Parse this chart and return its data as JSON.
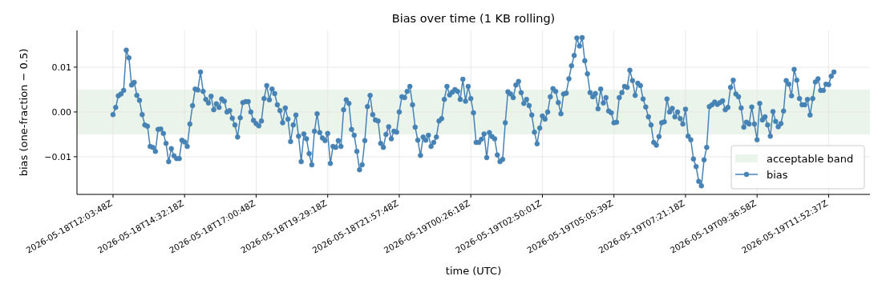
{
  "chart_data": {
    "type": "line",
    "title": "Bias over time (1 KB rolling)",
    "xlabel": "time (UTC)",
    "ylabel": "bias (one-fraction − 0.5)",
    "categories": [
      "2026-05-18T12:03:48Z",
      null,
      null,
      null,
      null,
      null,
      null,
      null,
      null,
      null,
      null,
      null,
      null,
      null,
      null,
      null,
      null,
      null,
      null,
      null,
      null,
      null,
      null,
      null,
      null,
      null,
      null,
      "2026-05-18T14:32:18Z",
      null,
      null,
      null,
      null,
      null,
      null,
      null,
      null,
      null,
      null,
      null,
      null,
      null,
      null,
      null,
      null,
      null,
      null,
      null,
      null,
      null,
      null,
      null,
      null,
      null,
      null,
      "2026-05-18T17:00:48Z",
      null,
      null,
      null,
      null,
      null,
      null,
      null,
      null,
      null,
      null,
      null,
      null,
      null,
      null,
      null,
      null,
      null,
      null,
      null,
      null,
      null,
      null,
      null,
      null,
      null,
      null,
      "2026-05-18T19:29:18Z",
      null,
      null,
      null,
      null,
      null,
      null,
      null,
      null,
      null,
      null,
      null,
      null,
      null,
      null,
      null,
      null,
      null,
      null,
      null,
      null,
      null,
      null,
      null,
      null,
      null,
      null,
      "2026-05-18T21:57:48Z",
      null,
      null,
      null,
      null,
      null,
      null,
      null,
      null,
      null,
      null,
      null,
      null,
      null,
      null,
      null,
      null,
      null,
      null,
      null,
      null,
      null,
      null,
      null,
      null,
      null,
      null,
      "2026-05-19T00:26:18Z",
      null,
      null,
      null,
      null,
      null,
      null,
      null,
      null,
      null,
      null,
      null,
      null,
      null,
      null,
      null,
      null,
      null,
      null,
      null,
      null,
      null,
      null,
      null,
      null,
      null,
      null,
      "2026-05-19T02:50:01Z",
      null,
      null,
      null,
      null,
      null,
      null,
      null,
      null,
      null,
      null,
      null,
      null,
      null,
      null,
      null,
      null,
      null,
      null,
      null,
      null,
      null,
      null,
      null,
      null,
      null,
      null,
      "2026-05-19T05:05:39Z",
      null,
      null,
      null,
      null,
      null,
      null,
      null,
      null,
      null,
      null,
      null,
      null,
      null,
      null,
      null,
      null,
      null,
      null,
      null,
      null,
      null,
      null,
      null,
      null,
      null,
      null,
      "2026-05-19T07:21:18Z",
      null,
      null,
      null,
      null,
      null,
      null,
      null,
      null,
      null,
      null,
      null,
      null,
      null,
      null,
      null,
      null,
      null,
      null,
      null,
      null,
      null,
      null,
      null,
      null,
      null,
      null,
      "2026-05-19T09:36:58Z",
      null,
      null,
      null,
      null,
      null,
      null,
      null,
      null,
      null,
      null,
      null,
      null,
      null,
      null,
      null,
      null,
      null,
      null,
      null,
      null,
      null,
      null,
      null,
      null,
      null,
      null,
      "2026-05-19T11:52:37Z",
      null,
      null
    ],
    "series": [
      {
        "name": "bias",
        "color": "#4682b4",
        "values": [
          -0.0006,
          0.001,
          0.0036,
          0.004,
          0.0048,
          0.0138,
          0.0121,
          0.006,
          0.0066,
          0.0037,
          0.0026,
          -0.0006,
          -0.0029,
          -0.0032,
          -0.0077,
          -0.0079,
          -0.0088,
          -0.0039,
          -0.0038,
          -0.0048,
          -0.007,
          -0.0111,
          -0.0082,
          -0.0098,
          -0.0104,
          -0.0104,
          -0.0063,
          -0.0067,
          -0.0077,
          -0.0027,
          0.0014,
          0.0051,
          0.0049,
          0.0089,
          0.0046,
          0.0028,
          0.002,
          0.0035,
          0.0005,
          0.0018,
          0.001,
          0.0029,
          0.0024,
          0.0,
          0.0003,
          -0.0014,
          -0.0029,
          -0.0056,
          -0.0013,
          0.0021,
          0.0023,
          0.0023,
          0.0,
          -0.0019,
          -0.0026,
          -0.0031,
          -0.002,
          0.003,
          0.0059,
          0.0027,
          0.0051,
          0.0041,
          0.0016,
          0.0003,
          -0.0024,
          0.0009,
          -0.0016,
          -0.0066,
          -0.0029,
          -0.0007,
          -0.0054,
          -0.0111,
          -0.0049,
          -0.006,
          -0.0093,
          -0.0118,
          -0.0043,
          -0.0004,
          -0.0046,
          -0.0058,
          -0.0064,
          -0.0048,
          -0.0115,
          -0.0077,
          -0.0079,
          -0.0064,
          -0.0077,
          0.0005,
          0.0027,
          0.0019,
          -0.0039,
          -0.0052,
          -0.0088,
          -0.0129,
          -0.0118,
          -0.0064,
          0.0012,
          0.0037,
          -0.0006,
          -0.0018,
          -0.002,
          -0.007,
          -0.0079,
          -0.005,
          -0.0033,
          -0.006,
          -0.0043,
          -0.0045,
          0.0,
          0.0034,
          0.0032,
          0.0046,
          0.0057,
          0.0016,
          -0.0034,
          -0.0063,
          -0.0097,
          -0.0056,
          -0.0063,
          -0.0052,
          -0.0077,
          -0.0068,
          -0.0056,
          -0.002,
          -0.0015,
          0.0028,
          0.0057,
          0.0038,
          0.0044,
          0.005,
          0.0046,
          0.0028,
          0.0073,
          0.0024,
          0.0057,
          0.003,
          -0.0002,
          -0.0068,
          -0.0068,
          -0.0061,
          -0.0049,
          -0.0102,
          -0.0046,
          -0.0055,
          -0.006,
          -0.0096,
          -0.0111,
          -0.0106,
          -0.0024,
          0.0045,
          0.004,
          0.0032,
          0.006,
          0.0068,
          0.0043,
          0.0019,
          0.0028,
          0.0014,
          -0.0007,
          -0.0045,
          -0.0071,
          -0.0036,
          -0.0009,
          -0.0016,
          0.0,
          0.0034,
          0.0052,
          0.0046,
          0.0021,
          -0.0004,
          0.004,
          0.0042,
          0.0074,
          0.0103,
          0.0126,
          0.0165,
          0.0147,
          0.0166,
          0.0114,
          0.0085,
          0.0043,
          0.0034,
          0.0041,
          0.0007,
          0.0051,
          0.002,
          0.0032,
          0.0002,
          -0.0002,
          -0.0024,
          -0.0023,
          0.0032,
          0.0043,
          0.0057,
          0.0055,
          0.0093,
          0.007,
          0.0037,
          0.0064,
          0.0059,
          0.0029,
          0.0011,
          -0.0011,
          -0.0029,
          -0.0068,
          -0.0074,
          -0.0055,
          -0.0024,
          -0.0022,
          0.0029,
          0.0,
          0.0008,
          -0.0011,
          0.0,
          -0.0015,
          -0.0027,
          0.0006,
          -0.0054,
          -0.0062,
          -0.0105,
          -0.0122,
          -0.0155,
          -0.0165,
          -0.0107,
          -0.0079,
          0.0012,
          0.0016,
          0.0022,
          0.0017,
          0.0021,
          0.0025,
          0.0005,
          0.001,
          0.0055,
          0.0071,
          0.004,
          0.0034,
          0.0009,
          -0.0034,
          -0.0023,
          -0.0027,
          0.0011,
          -0.0027,
          -0.0062,
          0.0019,
          -0.0018,
          -0.0011,
          -0.0029,
          -0.0054,
          0.0001,
          -0.0021,
          -0.0033,
          -0.0026,
          0.0002,
          0.007,
          0.0062,
          0.0036,
          0.0095,
          0.0071,
          0.003,
          0.0016,
          0.0016,
          0.0028,
          -0.0007,
          0.003,
          0.0067,
          0.0074,
          0.0048,
          0.0048,
          0.0062,
          0.0061,
          0.008,
          0.0089
        ]
      }
    ],
    "bands": [
      {
        "axis": "y",
        "from": -0.005,
        "to": 0.005,
        "label": "acceptable band",
        "color": "#eaf4ea"
      }
    ],
    "ylim": [
      -0.0184,
      0.0182
    ],
    "yticks": [
      {
        "value": -0.01,
        "label": "−0.01"
      },
      {
        "value": 0,
        "label": "0.00"
      },
      {
        "value": 0.01,
        "label": "0.01"
      }
    ],
    "grid": true,
    "legend": "bottom right",
    "marker": "circle",
    "line_style": "solid"
  }
}
